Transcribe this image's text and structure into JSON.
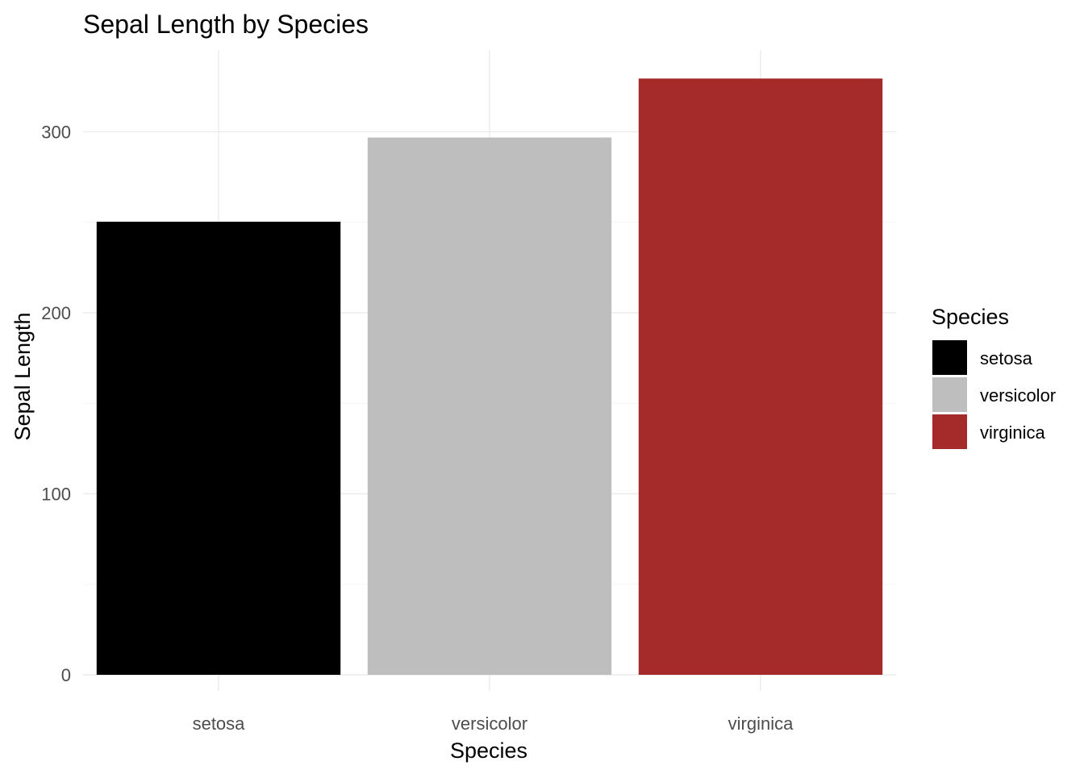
{
  "chart_data": {
    "type": "bar",
    "title": "Sepal Length by Species",
    "xlabel": "Species",
    "ylabel": "Sepal Length",
    "categories": [
      "setosa",
      "versicolor",
      "virginica"
    ],
    "values": [
      250.3,
      296.8,
      329.4
    ],
    "colors": [
      "#000000",
      "#bebebe",
      "#a52a2a"
    ],
    "ylim": [
      0,
      345
    ],
    "yticks": [
      0,
      100,
      200,
      300
    ],
    "grid": true,
    "legend": {
      "title": "Species",
      "position": "right",
      "entries": [
        "setosa",
        "versicolor",
        "virginica"
      ]
    }
  }
}
